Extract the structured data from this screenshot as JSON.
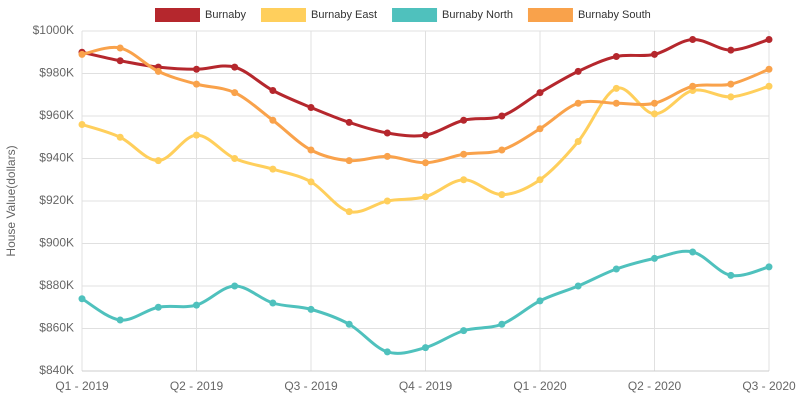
{
  "chart_data": {
    "type": "line",
    "y_label": "House Value(dollars)",
    "categories": [
      "Q1 - 2019",
      null,
      null,
      "Q2 - 2019",
      null,
      null,
      "Q3 - 2019",
      null,
      null,
      "Q4 - 2019",
      null,
      null,
      "Q1 - 2020",
      null,
      null,
      "Q2 - 2020",
      null,
      null,
      "Q3 - 2020"
    ],
    "series": [
      {
        "name": "Burnaby",
        "color": "#b5272d",
        "values": [
          990000,
          986000,
          983000,
          982000,
          983000,
          972000,
          964000,
          957000,
          952000,
          951000,
          958000,
          960000,
          971000,
          981000,
          988000,
          989000,
          996000,
          991000,
          996000
        ]
      },
      {
        "name": "Burnaby East",
        "color": "#ffcf5c",
        "values": [
          956000,
          950000,
          939000,
          951000,
          940000,
          935000,
          929000,
          915000,
          920000,
          922000,
          930000,
          923000,
          930000,
          948000,
          973000,
          961000,
          972000,
          969000,
          974000
        ]
      },
      {
        "name": "Burnaby North",
        "color": "#4fc1bd",
        "values": [
          874000,
          864000,
          870000,
          871000,
          880000,
          872000,
          869000,
          862000,
          849000,
          851000,
          859000,
          862000,
          873000,
          880000,
          888000,
          893000,
          896000,
          885000,
          889000
        ]
      },
      {
        "name": "Burnaby South",
        "color": "#f9a24b",
        "values": [
          989000,
          992000,
          981000,
          975000,
          971000,
          958000,
          944000,
          939000,
          941000,
          938000,
          942000,
          944000,
          954000,
          966000,
          966000,
          966000,
          974000,
          975000,
          982000
        ]
      }
    ],
    "ylim": [
      840000,
      1000000
    ],
    "yticks": [
      {
        "value": 840000,
        "label": "$840K"
      },
      {
        "value": 860000,
        "label": "$860K"
      },
      {
        "value": 880000,
        "label": "$880K"
      },
      {
        "value": 900000,
        "label": "$900K"
      },
      {
        "value": 920000,
        "label": "$920K"
      },
      {
        "value": 940000,
        "label": "$940K"
      },
      {
        "value": 960000,
        "label": "$960K"
      },
      {
        "value": 980000,
        "label": "$980K"
      },
      {
        "value": 1000000,
        "label": "$1000K"
      }
    ],
    "grid": true,
    "smooth": true,
    "legend": "top"
  }
}
